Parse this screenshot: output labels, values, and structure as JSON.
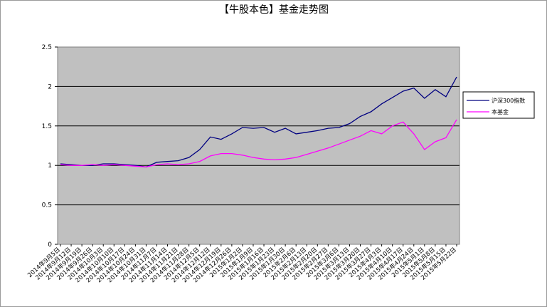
{
  "chart_data": {
    "type": "line",
    "title": "【牛股本色】基金走势图",
    "ylim": [
      0,
      2.5
    ],
    "yticks": [
      "2.5",
      "2",
      "1.5",
      "1",
      "0.5",
      "0"
    ],
    "ytick_values": [
      2.5,
      2,
      1.5,
      1,
      0.5,
      0
    ],
    "grid": "horizontal",
    "plot_background": "#c0c0c0",
    "legend_position": "right",
    "x_tick_labels": [
      "2014年9月5日",
      "2014年9月12日",
      "2014年9月19日",
      "2014年9月26日",
      "2014年10月3日",
      "2014年10月10日",
      "2014年10月17日",
      "2014年10月24日",
      "2014年10月31日",
      "2014年11月7日",
      "2014年11月14日",
      "2014年11月21日",
      "2014年11月28日",
      "2014年12月5日",
      "2014年12月12日",
      "2014年12月19日",
      "2014年12月26日",
      "2015年1月2日",
      "2015年1月9日",
      "2015年1月16日",
      "2015年1月23日",
      "2015年1月30日",
      "2015年2月6日",
      "2015年2月13日",
      "2015年2月20日",
      "2015年2月27日",
      "2015年3月6日",
      "2015年3月13日",
      "2015年3月20日",
      "2015年3月27日",
      "2015年4月3日",
      "2015年4月10日",
      "2015年4月17日",
      "2015年4月24日",
      "2015年5月1日",
      "2015年5月8日",
      "2015年5月15日",
      "2015年5月22日"
    ],
    "series": [
      {
        "name": "沪深300指数",
        "color": "#000080",
        "values": [
          1.02,
          1.01,
          1.0,
          1.0,
          1.02,
          1.02,
          1.01,
          1.0,
          0.98,
          1.04,
          1.05,
          1.06,
          1.1,
          1.2,
          1.36,
          1.33,
          1.4,
          1.48,
          1.47,
          1.48,
          1.42,
          1.47,
          1.4,
          1.42,
          1.44,
          1.47,
          1.48,
          1.53,
          1.62,
          1.68,
          1.78,
          1.86,
          1.94,
          1.98,
          1.85,
          1.96,
          1.87,
          2.12
        ]
      },
      {
        "name": "本基金",
        "color": "#ff00ff",
        "values": [
          1.01,
          1.0,
          1.0,
          1.01,
          1.0,
          1.01,
          1.0,
          0.99,
          0.98,
          1.01,
          1.02,
          1.01,
          1.02,
          1.05,
          1.12,
          1.15,
          1.15,
          1.13,
          1.1,
          1.08,
          1.07,
          1.08,
          1.1,
          1.14,
          1.18,
          1.22,
          1.27,
          1.32,
          1.37,
          1.44,
          1.4,
          1.5,
          1.55,
          1.4,
          1.2,
          1.3,
          1.35,
          1.58
        ]
      }
    ]
  }
}
